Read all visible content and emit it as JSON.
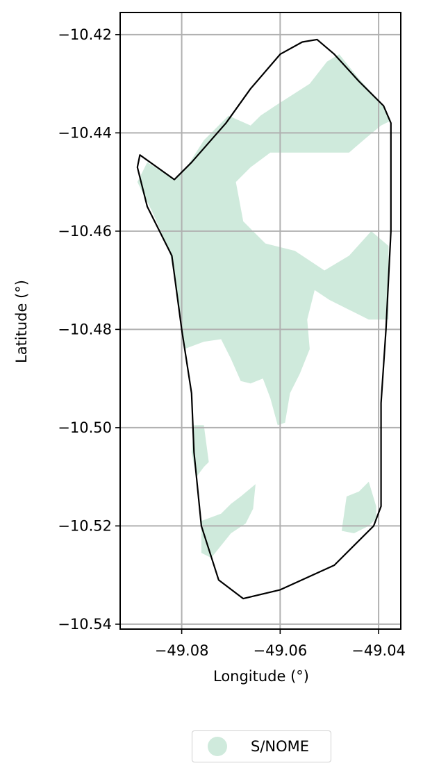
{
  "chart_data": {
    "type": "map",
    "xlabel": "Longitude (°)",
    "ylabel": "Latitude (°)",
    "xlim": [
      -49.0925,
      -49.0355
    ],
    "ylim": [
      -10.541,
      -10.4155
    ],
    "x_ticks": [
      -49.08,
      -49.06,
      -49.04
    ],
    "x_tick_labels": [
      "−49.08",
      "−49.06",
      "−49.04"
    ],
    "y_ticks": [
      -10.42,
      -10.44,
      -10.46,
      -10.48,
      -10.5,
      -10.52,
      -10.54
    ],
    "y_tick_labels": [
      "−10.42",
      "−10.44",
      "−10.46",
      "−10.48",
      "−10.50",
      "−10.52",
      "−10.54"
    ],
    "grid": true,
    "legend": {
      "placement": "bottom-center",
      "entries": [
        {
          "label": "S/NOME",
          "color": "#cfeadc"
        }
      ]
    },
    "fill_color": "#cfeadc",
    "boundary_color": "#000000",
    "boundary": [
      [
        -49.0525,
        -10.421
      ],
      [
        -49.049,
        -10.424
      ],
      [
        -49.044,
        -10.4295
      ],
      [
        -49.039,
        -10.4345
      ],
      [
        -49.0375,
        -10.438
      ],
      [
        -49.0375,
        -10.46
      ],
      [
        -49.0385,
        -10.48
      ],
      [
        -49.0395,
        -10.495
      ],
      [
        -49.0395,
        -10.505
      ],
      [
        -49.0395,
        -10.516
      ],
      [
        -49.041,
        -10.52
      ],
      [
        -49.049,
        -10.528
      ],
      [
        -49.06,
        -10.533
      ],
      [
        -49.0675,
        -10.5348
      ],
      [
        -49.0725,
        -10.531
      ],
      [
        -49.076,
        -10.52
      ],
      [
        -49.0775,
        -10.505
      ],
      [
        -49.078,
        -10.493
      ],
      [
        -49.08,
        -10.48
      ],
      [
        -49.082,
        -10.465
      ],
      [
        -49.087,
        -10.455
      ],
      [
        -49.089,
        -10.447
      ],
      [
        -49.0885,
        -10.4445
      ],
      [
        -49.0815,
        -10.4495
      ],
      [
        -49.078,
        -10.446
      ],
      [
        -49.071,
        -10.438
      ],
      [
        -49.066,
        -10.431
      ],
      [
        -49.06,
        -10.424
      ],
      [
        -49.0555,
        -10.4215
      ]
    ],
    "regions": [
      {
        "name": "north-territory",
        "points": [
          [
            -49.087,
            -10.446
          ],
          [
            -49.0815,
            -10.4495
          ],
          [
            -49.079,
            -10.447
          ],
          [
            -49.0755,
            -10.4415
          ],
          [
            -49.072,
            -10.438
          ],
          [
            -49.0705,
            -10.4365
          ],
          [
            -49.066,
            -10.4385
          ],
          [
            -49.064,
            -10.4365
          ],
          [
            -49.061,
            -10.4345
          ],
          [
            -49.054,
            -10.43
          ],
          [
            -49.0505,
            -10.4255
          ],
          [
            -49.048,
            -10.424
          ],
          [
            -49.044,
            -10.429
          ],
          [
            -49.039,
            -10.4345
          ],
          [
            -49.0375,
            -10.4375
          ],
          [
            -49.0395,
            -10.4385
          ],
          [
            -49.0425,
            -10.441
          ],
          [
            -49.046,
            -10.444
          ],
          [
            -49.055,
            -10.444
          ],
          [
            -49.062,
            -10.444
          ],
          [
            -49.066,
            -10.447
          ],
          [
            -49.069,
            -10.45
          ],
          [
            -49.0675,
            -10.458
          ],
          [
            -49.063,
            -10.4625
          ],
          [
            -49.057,
            -10.464
          ],
          [
            -49.051,
            -10.468
          ],
          [
            -49.046,
            -10.465
          ],
          [
            -49.0415,
            -10.46
          ],
          [
            -49.038,
            -10.463
          ],
          [
            -49.038,
            -10.478
          ],
          [
            -49.042,
            -10.478
          ],
          [
            -49.046,
            -10.476
          ],
          [
            -49.05,
            -10.474
          ],
          [
            -49.053,
            -10.472
          ],
          [
            -49.0545,
            -10.478
          ],
          [
            -49.054,
            -10.484
          ],
          [
            -49.056,
            -10.489
          ],
          [
            -49.058,
            -10.493
          ],
          [
            -49.059,
            -10.499
          ],
          [
            -49.0605,
            -10.4995
          ],
          [
            -49.062,
            -10.494
          ],
          [
            -49.0635,
            -10.49
          ],
          [
            -49.066,
            -10.491
          ],
          [
            -49.068,
            -10.4905
          ],
          [
            -49.07,
            -10.486
          ],
          [
            -49.072,
            -10.482
          ],
          [
            -49.0755,
            -10.4825
          ],
          [
            -49.0795,
            -10.484
          ],
          [
            -49.081,
            -10.472
          ],
          [
            -49.0825,
            -10.464
          ],
          [
            -49.086,
            -10.456
          ],
          [
            -49.089,
            -10.45
          ]
        ]
      },
      {
        "name": "west-strip",
        "points": [
          [
            -49.0775,
            -10.4995
          ],
          [
            -49.0755,
            -10.4995
          ],
          [
            -49.0745,
            -10.507
          ],
          [
            -49.0755,
            -10.508
          ],
          [
            -49.077,
            -10.51
          ],
          [
            -49.078,
            -10.505
          ]
        ]
      },
      {
        "name": "southwest-patch",
        "points": [
          [
            -49.076,
            -10.519
          ],
          [
            -49.072,
            -10.5175
          ],
          [
            -49.07,
            -10.5155
          ],
          [
            -49.068,
            -10.514
          ],
          [
            -49.065,
            -10.5115
          ],
          [
            -49.0655,
            -10.5165
          ],
          [
            -49.067,
            -10.5195
          ],
          [
            -49.07,
            -10.5215
          ],
          [
            -49.074,
            -10.5265
          ],
          [
            -49.076,
            -10.5255
          ]
        ]
      },
      {
        "name": "southeast-patch",
        "points": [
          [
            -49.0405,
            -10.516
          ],
          [
            -49.042,
            -10.511
          ],
          [
            -49.044,
            -10.513
          ],
          [
            -49.0465,
            -10.514
          ],
          [
            -49.0475,
            -10.521
          ],
          [
            -49.045,
            -10.5215
          ],
          [
            -49.042,
            -10.52
          ],
          [
            -49.0405,
            -10.5185
          ]
        ]
      }
    ]
  }
}
